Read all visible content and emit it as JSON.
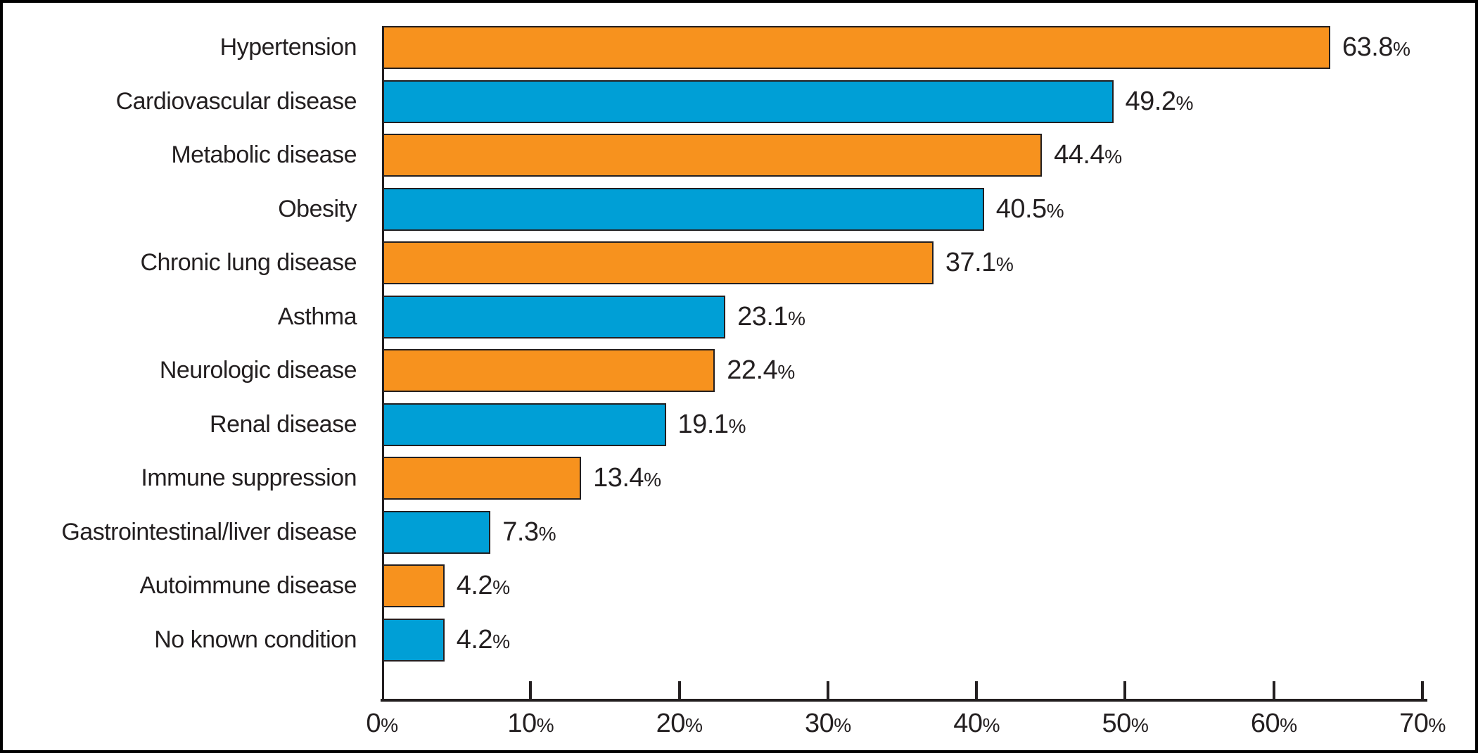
{
  "figure": {
    "background_color": "#ffffff",
    "border_color": "#000000"
  },
  "chart_data": {
    "type": "bar",
    "orientation": "horizontal",
    "title": "",
    "xlabel": "",
    "ylabel": "",
    "categories": [
      "Hypertension",
      "Cardiovascular disease",
      "Metabolic disease",
      "Obesity",
      "Chronic lung disease",
      "Asthma",
      "Neurologic disease",
      "Renal disease",
      "Immune suppression",
      "Gastrointestinal/liver disease",
      "Autoimmune disease",
      "No known condition"
    ],
    "values": [
      63.8,
      49.2,
      44.4,
      40.5,
      37.1,
      23.1,
      22.4,
      19.1,
      13.4,
      7.3,
      4.2,
      4.2
    ],
    "value_labels": [
      "63.8%",
      "49.2%",
      "44.4%",
      "40.5%",
      "37.1%",
      "23.1%",
      "22.4%",
      "19.1%",
      "13.4%",
      "7.3%",
      "4.2%",
      "4.2%"
    ],
    "bar_colors_alternating": [
      "#F7921E",
      "#009FD6"
    ],
    "bar_border_color": "#231F20",
    "axis_color": "#231F20",
    "text_color": "#231F20",
    "xlim": [
      0,
      70
    ],
    "x_ticks": [
      0,
      10,
      20,
      30,
      40,
      50,
      60,
      70
    ],
    "x_tick_labels": [
      "0%",
      "10%",
      "20%",
      "30%",
      "40%",
      "50%",
      "60%",
      "70%"
    ],
    "grid": false,
    "legend": null
  }
}
